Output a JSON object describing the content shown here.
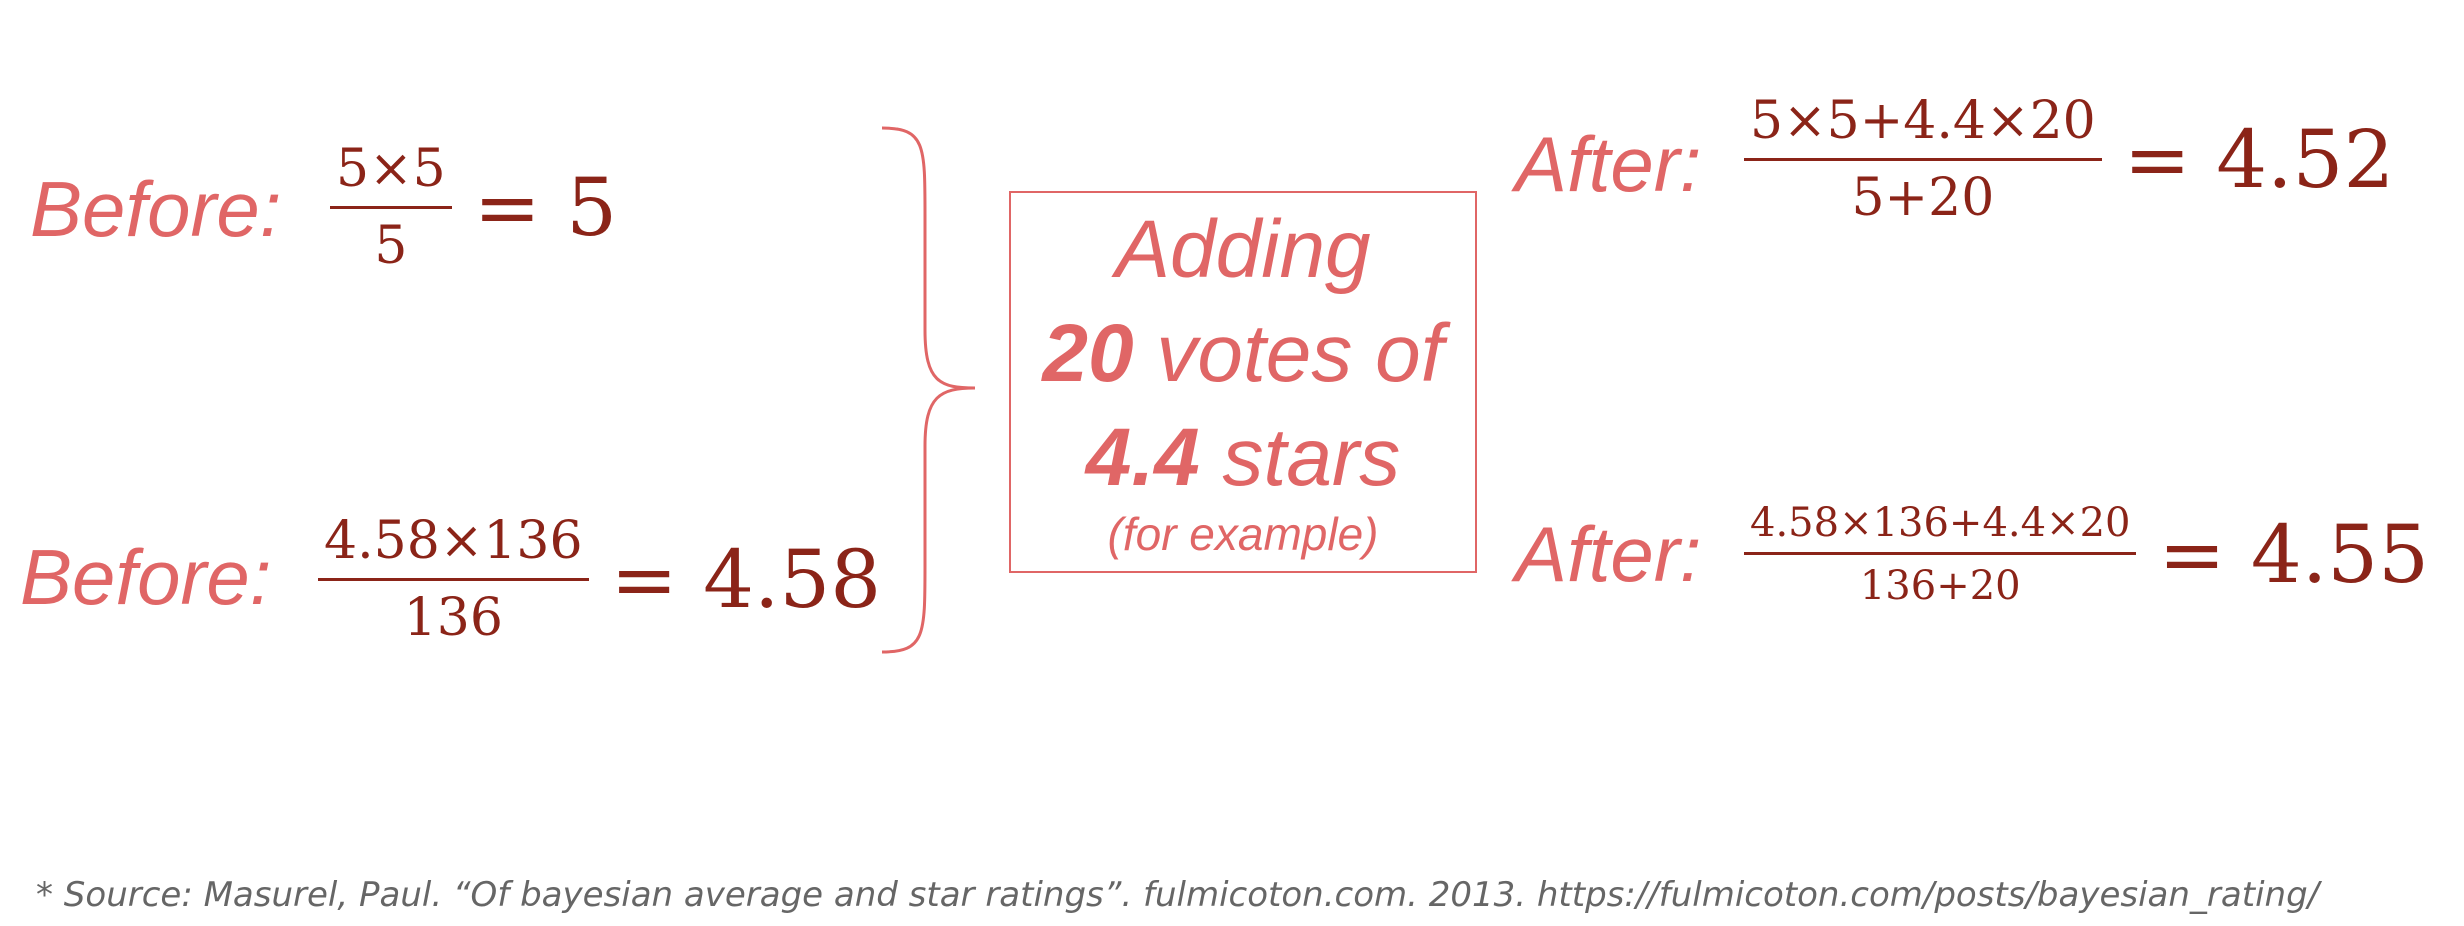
{
  "before_top": {
    "label": "Before:",
    "numerator": "5×5",
    "denominator": "5",
    "result": "= 5"
  },
  "before_bottom": {
    "label": "Before:",
    "numerator": "4.58×136",
    "denominator": "136",
    "result": "= 4.58"
  },
  "box": {
    "line1": "Adding",
    "line2_bold": "20",
    "line2_rest": " votes of",
    "line3_bold": "4.4",
    "line3_rest": " stars",
    "line4": "(for example)"
  },
  "after_top": {
    "label": "After:",
    "numerator": "5×5+4.4×20",
    "denominator": "5+20",
    "result": "= 4.52"
  },
  "after_bottom": {
    "label": "After:",
    "numerator": "4.58×136+4.4×20",
    "denominator": "136+20",
    "result": "= 4.55"
  },
  "source": "* Source: Masurel, Paul. “Of bayesian average and star ratings”. fulmicoton.com. 2013. https://fulmicoton.com/posts/bayesian_rating/",
  "colors": {
    "label": "#e06666",
    "math": "#8b2418",
    "source": "#666666"
  }
}
